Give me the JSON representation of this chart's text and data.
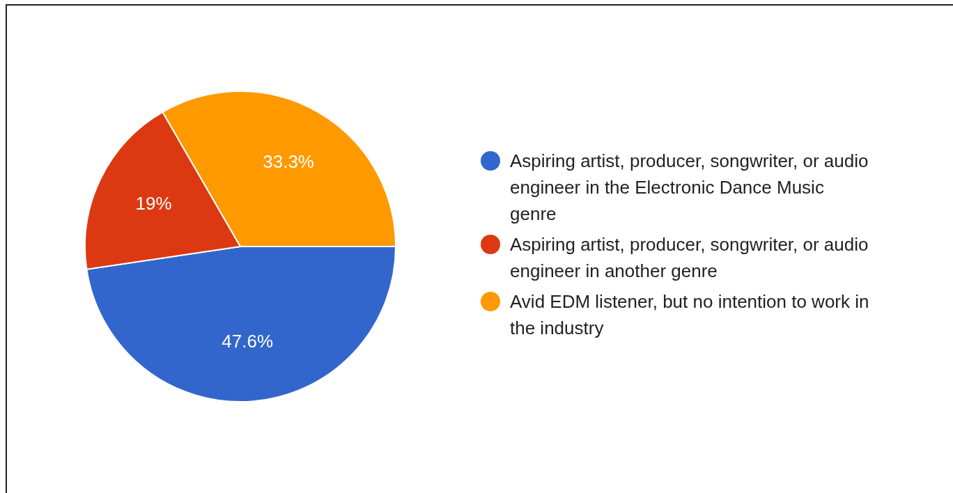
{
  "chart_data": {
    "type": "pie",
    "categories": [
      "Aspiring artist, producer, songwriter, or audio engineer in the Electronic Dance Music genre",
      "Aspiring artist, producer, songwriter, or audio engineer in another genre",
      "Avid EDM listener, but no intention to work in the industry"
    ],
    "values": [
      47.6,
      19,
      33.3
    ],
    "colors": [
      "#3366cc",
      "#dc3912",
      "#ff9900"
    ],
    "value_labels": [
      "47.6%",
      "19%",
      "33.3%"
    ],
    "legend": "right"
  }
}
